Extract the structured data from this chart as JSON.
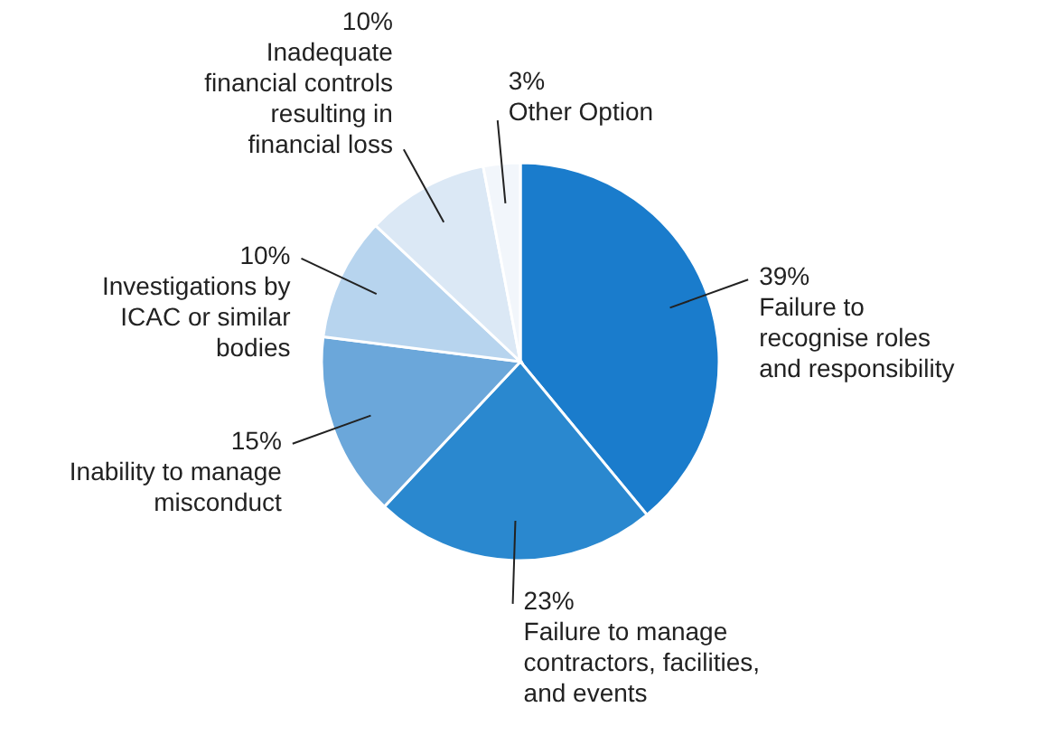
{
  "chart_data": {
    "type": "pie",
    "categories": [
      "Failure to\nrecognise roles\nand responsibility",
      "Failure to manage\ncontractors, facilities,\nand events",
      "Inability to manage\nmisconduct",
      "Investigations by\nICAC or similar\nbodies",
      "Inadequate\nfinancial controls\nresulting in\nfinancial loss",
      "Other Option"
    ],
    "values": [
      39,
      23,
      15,
      10,
      10,
      3
    ],
    "value_labels": [
      "39%",
      "23%",
      "15%",
      "10%",
      "10%",
      "3%"
    ],
    "colors": [
      "#1a7ccc",
      "#2a88cf",
      "#6ba7da",
      "#b7d4ee",
      "#dbe8f5",
      "#f2f6fb"
    ]
  }
}
